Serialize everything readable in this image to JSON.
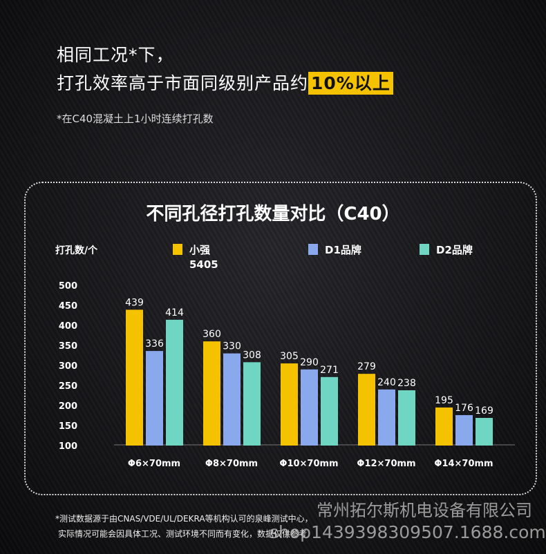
{
  "header": {
    "line1": "相同工况*下，",
    "line2_prefix": "打孔效率高于市面同级别产品约",
    "line2_highlight": "10%以上",
    "note": "*在C40混凝土上1小时连续打孔数"
  },
  "chart_data": {
    "type": "bar",
    "title": "不同孔径打孔数量对比（C40）",
    "ylabel": "打孔数/个",
    "categories": [
      "Φ6×70mm",
      "Φ8×70mm",
      "Φ10×70mm",
      "Φ12×70mm",
      "Φ14×70mm"
    ],
    "series": [
      {
        "name": "小强 5405",
        "name_line1": "小强",
        "name_line2": "5405",
        "color": "#f5c200",
        "values": [
          439,
          360,
          305,
          279,
          195
        ]
      },
      {
        "name": "D1品牌",
        "color": "#8aa8ec",
        "values": [
          336,
          330,
          290,
          240,
          176
        ]
      },
      {
        "name": "D2品牌",
        "color": "#6fd6c4",
        "values": [
          414,
          308,
          271,
          238,
          169
        ]
      }
    ],
    "yticks": [
      "500",
      "450",
      "400",
      "350",
      "300",
      "250",
      "200",
      "150",
      "100"
    ],
    "ylim": [
      100,
      500
    ],
    "legend": "top",
    "grid": false
  },
  "footer": {
    "line1": "*测试数据源于由CNAS/VDE/UL/DEKRA等机构认可的泉峰测试中心，",
    "line2": "实际情况可能会因具体工况、测试环境不同而有变化，数据仅供参考"
  },
  "watermark": {
    "company": "常州拓尔斯机电设备有限公司",
    "shop": "shop1439398309507.1688.com"
  }
}
